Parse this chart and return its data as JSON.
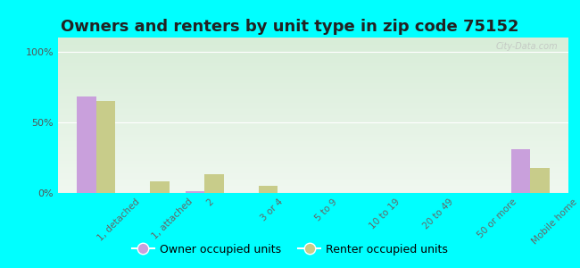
{
  "title": "Owners and renters by unit type in zip code 75152",
  "categories": [
    "1, detached",
    "1, attached",
    "2",
    "3 or 4",
    "5 to 9",
    "10 to 19",
    "20 to 49",
    "50 or more",
    "Mobile home"
  ],
  "owner_values": [
    68,
    0,
    1,
    0,
    0,
    0,
    0,
    0,
    31
  ],
  "renter_values": [
    65,
    8,
    13,
    5,
    0,
    0,
    0,
    0,
    18
  ],
  "owner_color": "#c9a0dc",
  "renter_color": "#c8cc8a",
  "background_color": "#00ffff",
  "gradient_top": "#d8edd8",
  "gradient_bottom": "#f0f8f0",
  "yticks": [
    0,
    50,
    100
  ],
  "ytick_labels": [
    "0%",
    "50%",
    "100%"
  ],
  "bar_width": 0.35,
  "legend_owner": "Owner occupied units",
  "legend_renter": "Renter occupied units",
  "title_fontsize": 13,
  "watermark": "City-Data.com"
}
